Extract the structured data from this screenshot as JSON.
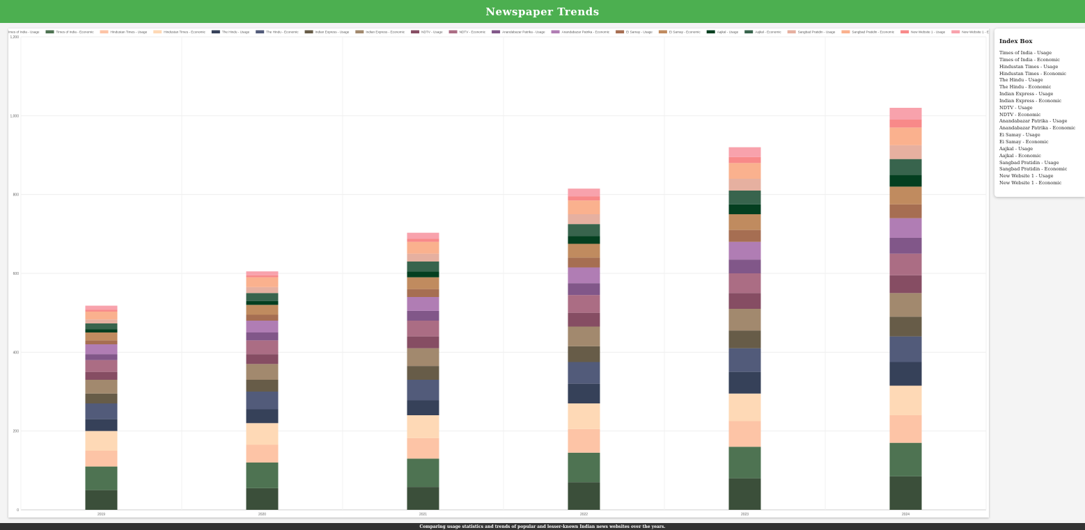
{
  "header": {
    "title": "Newspaper Trends"
  },
  "index_box": {
    "title": "Index Box",
    "items": [
      "Times of India - Usage",
      "Times of India - Economic",
      "Hindustan Times - Usage",
      "Hindustan Times - Economic",
      "The Hindu - Usage",
      "The Hindu - Economic",
      "Indian Express - Usage",
      "Indian Express - Economic",
      "NDTV - Usage",
      "NDTV - Economic",
      "Anandabazar Patrika - Usage",
      "Anandabazar Patrika - Economic",
      "Ei Samay - Usage",
      "Ei Samay - Economic",
      "Aajkal - Usage",
      "Aajkal - Economic",
      "Sangbad Pratidin - Usage",
      "Sangbad Pratidin - Economic",
      "New Website 1 - Usage",
      "New Website 1 - Economic"
    ]
  },
  "footer": {
    "text": "Comparing usage statistics and trends of popular and lesser-known Indian news websites over the years."
  },
  "chart_data": {
    "type": "bar",
    "stacked": true,
    "categories": [
      "2019",
      "2020",
      "2021",
      "2022",
      "2023",
      "2024"
    ],
    "ylim": [
      0,
      1200
    ],
    "yticks": [
      "0",
      "200",
      "400",
      "600",
      "800",
      "1,000",
      "1,200"
    ],
    "grid": true,
    "legend_position": "top",
    "series": [
      {
        "name": "Times of India - Usage",
        "color": "#3b4f3a",
        "values": [
          50,
          55,
          58,
          70,
          80,
          85
        ]
      },
      {
        "name": "Times of India - Economic",
        "color": "#4e7352",
        "values": [
          60,
          65,
          72,
          75,
          80,
          85
        ]
      },
      {
        "name": "Hindustan Times - Usage",
        "color": "#fdc4a6",
        "values": [
          40,
          45,
          52,
          60,
          65,
          70
        ]
      },
      {
        "name": "Hindustan Times - Economic",
        "color": "#fed9b6",
        "values": [
          50,
          55,
          58,
          65,
          70,
          75
        ]
      },
      {
        "name": "The Hindu - Usage",
        "color": "#364159",
        "values": [
          30,
          35,
          38,
          50,
          55,
          60
        ]
      },
      {
        "name": "The Hindu - Economic",
        "color": "#525b7a",
        "values": [
          40,
          45,
          52,
          55,
          60,
          65
        ]
      },
      {
        "name": "Indian Express - Usage",
        "color": "#675c48",
        "values": [
          25,
          30,
          35,
          40,
          45,
          50
        ]
      },
      {
        "name": "Indian Express - Economic",
        "color": "#a2896e",
        "values": [
          35,
          40,
          45,
          50,
          55,
          60
        ]
      },
      {
        "name": "NDTV - Usage",
        "color": "#864d63",
        "values": [
          20,
          25,
          30,
          35,
          40,
          45
        ]
      },
      {
        "name": "NDTV - Economic",
        "color": "#ab6d84",
        "values": [
          30,
          35,
          40,
          45,
          50,
          55
        ]
      },
      {
        "name": "Anandabazar Patrika - Usage",
        "color": "#815789",
        "values": [
          15,
          20,
          25,
          30,
          35,
          40
        ]
      },
      {
        "name": "Anandabazar Patrika - Economic",
        "color": "#b07db4",
        "values": [
          25,
          30,
          35,
          40,
          45,
          50
        ]
      },
      {
        "name": "Ei Samay - Usage",
        "color": "#a66e52",
        "values": [
          10,
          15,
          20,
          25,
          30,
          35
        ]
      },
      {
        "name": "Ei Samay - Economic",
        "color": "#c08b5f",
        "values": [
          20,
          25,
          30,
          35,
          40,
          45
        ]
      },
      {
        "name": "Aajkal - Usage",
        "color": "#043f20",
        "values": [
          8,
          10,
          15,
          20,
          25,
          30
        ]
      },
      {
        "name": "Aajkal - Economic",
        "color": "#38644d",
        "values": [
          15,
          20,
          25,
          30,
          35,
          40
        ]
      },
      {
        "name": "Sangbad Pratidin - Usage",
        "color": "#e6b0a0",
        "values": [
          10,
          15,
          20,
          25,
          30,
          35
        ]
      },
      {
        "name": "Sangbad Pratidin - Economic",
        "color": "#fab18e",
        "values": [
          20,
          25,
          30,
          35,
          40,
          45
        ]
      },
      {
        "name": "New Website 1 - Usage",
        "color": "#f88989",
        "values": [
          5,
          5,
          8,
          10,
          15,
          20
        ]
      },
      {
        "name": "New Website 1 - Economic",
        "color": "#f8a2ac",
        "values": [
          10,
          10,
          15,
          20,
          25,
          30
        ]
      }
    ]
  }
}
